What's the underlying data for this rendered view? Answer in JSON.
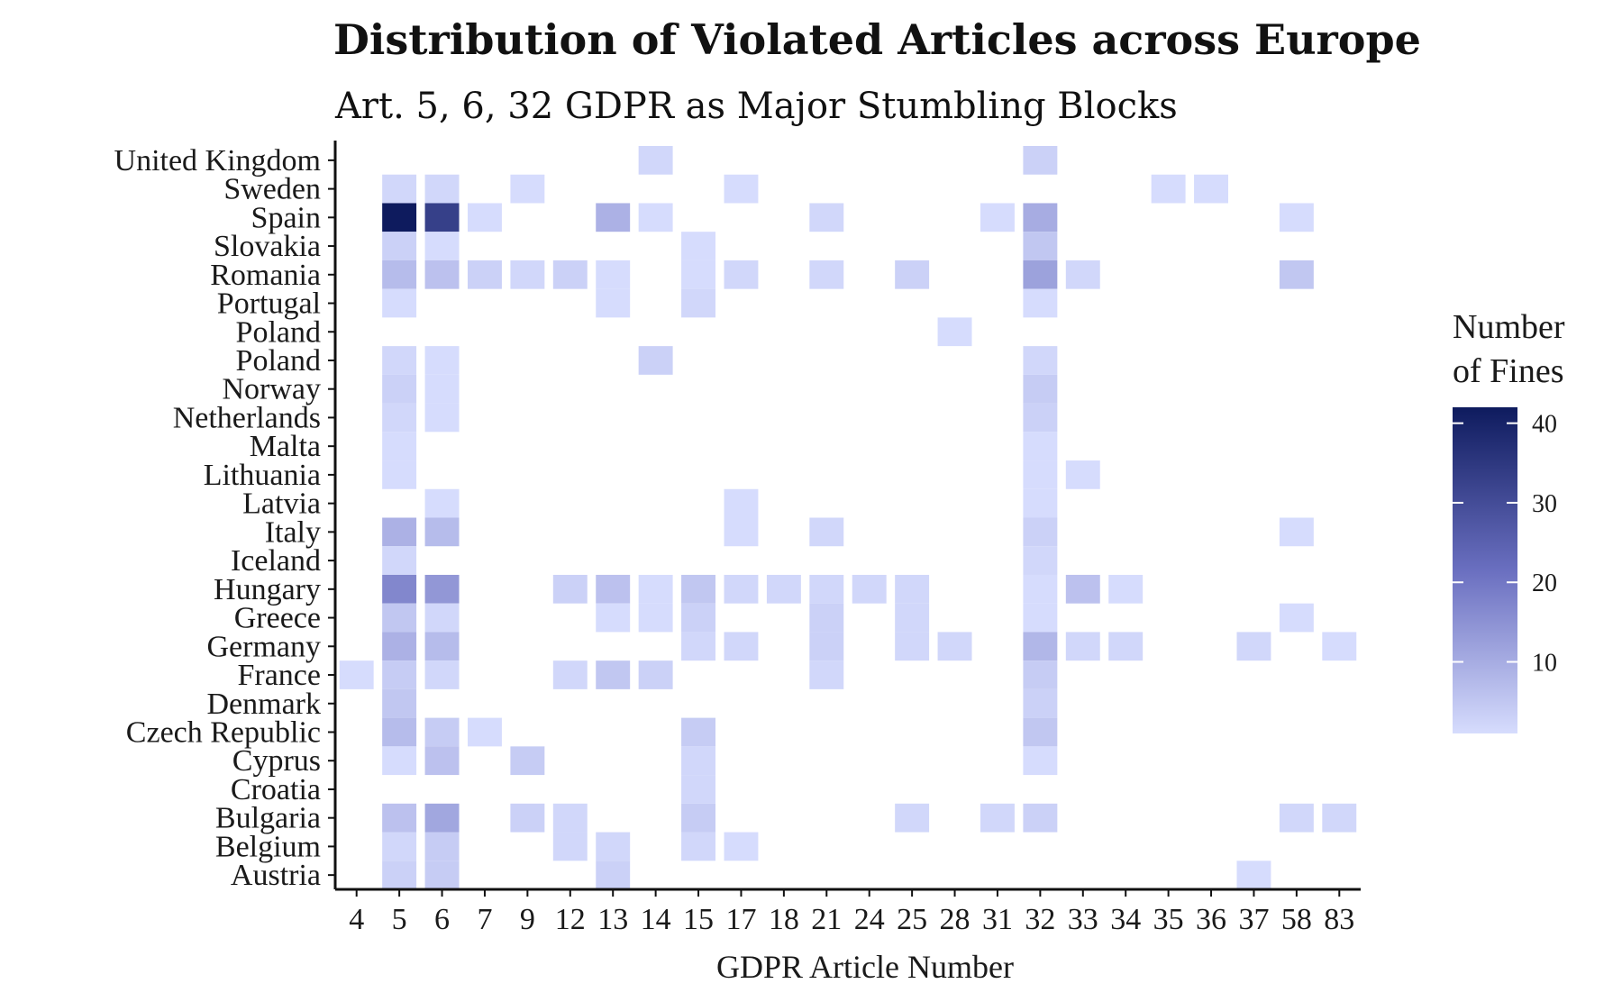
{
  "chart_data": {
    "type": "heatmap",
    "title": "Distribution of Violated Articles across Europe",
    "subtitle": "Art. 5, 6, 32 GDPR as Major Stumbling Blocks",
    "xlabel": "GDPR Article Number",
    "ylabel": "",
    "x_categories": [
      "4",
      "5",
      "6",
      "7",
      "9",
      "12",
      "13",
      "14",
      "15",
      "17",
      "18",
      "21",
      "24",
      "25",
      "28",
      "31",
      "32",
      "33",
      "34",
      "35",
      "36",
      "37",
      "58",
      "83"
    ],
    "y_categories": [
      "Austria",
      "Belgium",
      "Bulgaria",
      "Croatia",
      "Cyprus",
      "Czech Republic",
      "Denmark",
      "France",
      "Germany",
      "Greece",
      "Hungary",
      "Iceland",
      "Italy",
      "Latvia",
      "Lithuania",
      "Malta",
      "Netherlands",
      "Norway",
      "Poland",
      "Poland ",
      "Portugal",
      "Romania",
      "Slovakia",
      "Spain",
      "Sweden",
      "United Kingdom"
    ],
    "legend": {
      "title_line1": "Number",
      "title_line2": "of Fines",
      "min": 1,
      "max": 42,
      "ticks": [
        "10",
        "20",
        "30",
        "40"
      ],
      "color_low": "#d6dcfd",
      "color_high": "#0e1b5e"
    },
    "cells": [
      {
        "country": "United Kingdom",
        "article": "14",
        "value": 2
      },
      {
        "country": "United Kingdom",
        "article": "32",
        "value": 3
      },
      {
        "country": "Sweden",
        "article": "5",
        "value": 2
      },
      {
        "country": "Sweden",
        "article": "6",
        "value": 2
      },
      {
        "country": "Sweden",
        "article": "9",
        "value": 1
      },
      {
        "country": "Sweden",
        "article": "17",
        "value": 1
      },
      {
        "country": "Sweden",
        "article": "35",
        "value": 1
      },
      {
        "country": "Sweden",
        "article": "36",
        "value": 1
      },
      {
        "country": "Spain",
        "article": "5",
        "value": 42
      },
      {
        "country": "Spain",
        "article": "6",
        "value": 33
      },
      {
        "country": "Spain",
        "article": "7",
        "value": 1
      },
      {
        "country": "Spain",
        "article": "13",
        "value": 9
      },
      {
        "country": "Spain",
        "article": "14",
        "value": 1
      },
      {
        "country": "Spain",
        "article": "21",
        "value": 2
      },
      {
        "country": "Spain",
        "article": "31",
        "value": 1
      },
      {
        "country": "Spain",
        "article": "32",
        "value": 10
      },
      {
        "country": "Spain",
        "article": "58",
        "value": 1
      },
      {
        "country": "Slovakia",
        "article": "5",
        "value": 3
      },
      {
        "country": "Slovakia",
        "article": "6",
        "value": 1
      },
      {
        "country": "Slovakia",
        "article": "15",
        "value": 1
      },
      {
        "country": "Slovakia",
        "article": "32",
        "value": 5
      },
      {
        "country": "Romania",
        "article": "5",
        "value": 7
      },
      {
        "country": "Romania",
        "article": "6",
        "value": 6
      },
      {
        "country": "Romania",
        "article": "7",
        "value": 3
      },
      {
        "country": "Romania",
        "article": "9",
        "value": 2
      },
      {
        "country": "Romania",
        "article": "12",
        "value": 3
      },
      {
        "country": "Romania",
        "article": "13",
        "value": 1
      },
      {
        "country": "Romania",
        "article": "15",
        "value": 1
      },
      {
        "country": "Romania",
        "article": "17",
        "value": 2
      },
      {
        "country": "Romania",
        "article": "21",
        "value": 2
      },
      {
        "country": "Romania",
        "article": "25",
        "value": 3
      },
      {
        "country": "Romania",
        "article": "32",
        "value": 12
      },
      {
        "country": "Romania",
        "article": "33",
        "value": 2
      },
      {
        "country": "Romania",
        "article": "58",
        "value": 5
      },
      {
        "country": "Portugal",
        "article": "5",
        "value": 1
      },
      {
        "country": "Portugal",
        "article": "13",
        "value": 1
      },
      {
        "country": "Portugal",
        "article": "15",
        "value": 2
      },
      {
        "country": "Portugal",
        "article": "32",
        "value": 1
      },
      {
        "country": "Poland ",
        "article": "28",
        "value": 1
      },
      {
        "country": "Poland",
        "article": "5",
        "value": 2
      },
      {
        "country": "Poland",
        "article": "6",
        "value": 1
      },
      {
        "country": "Poland",
        "article": "14",
        "value": 3
      },
      {
        "country": "Poland",
        "article": "32",
        "value": 2
      },
      {
        "country": "Norway",
        "article": "5",
        "value": 3
      },
      {
        "country": "Norway",
        "article": "6",
        "value": 1
      },
      {
        "country": "Norway",
        "article": "32",
        "value": 4
      },
      {
        "country": "Netherlands",
        "article": "5",
        "value": 2
      },
      {
        "country": "Netherlands",
        "article": "6",
        "value": 1
      },
      {
        "country": "Netherlands",
        "article": "32",
        "value": 3
      },
      {
        "country": "Malta",
        "article": "5",
        "value": 1
      },
      {
        "country": "Malta",
        "article": "32",
        "value": 1
      },
      {
        "country": "Lithuania",
        "article": "5",
        "value": 1
      },
      {
        "country": "Lithuania",
        "article": "32",
        "value": 1
      },
      {
        "country": "Lithuania",
        "article": "33",
        "value": 1
      },
      {
        "country": "Latvia",
        "article": "6",
        "value": 1
      },
      {
        "country": "Latvia",
        "article": "17",
        "value": 1
      },
      {
        "country": "Latvia",
        "article": "32",
        "value": 1
      },
      {
        "country": "Italy",
        "article": "5",
        "value": 9
      },
      {
        "country": "Italy",
        "article": "6",
        "value": 7
      },
      {
        "country": "Italy",
        "article": "17",
        "value": 1
      },
      {
        "country": "Italy",
        "article": "21",
        "value": 2
      },
      {
        "country": "Italy",
        "article": "32",
        "value": 3
      },
      {
        "country": "Italy",
        "article": "58",
        "value": 1
      },
      {
        "country": "Iceland",
        "article": "5",
        "value": 2
      },
      {
        "country": "Iceland",
        "article": "32",
        "value": 2
      },
      {
        "country": "Hungary",
        "article": "5",
        "value": 17
      },
      {
        "country": "Hungary",
        "article": "6",
        "value": 14
      },
      {
        "country": "Hungary",
        "article": "12",
        "value": 3
      },
      {
        "country": "Hungary",
        "article": "13",
        "value": 6
      },
      {
        "country": "Hungary",
        "article": "14",
        "value": 1
      },
      {
        "country": "Hungary",
        "article": "15",
        "value": 5
      },
      {
        "country": "Hungary",
        "article": "17",
        "value": 2
      },
      {
        "country": "Hungary",
        "article": "18",
        "value": 2
      },
      {
        "country": "Hungary",
        "article": "21",
        "value": 2
      },
      {
        "country": "Hungary",
        "article": "24",
        "value": 2
      },
      {
        "country": "Hungary",
        "article": "25",
        "value": 2
      },
      {
        "country": "Hungary",
        "article": "32",
        "value": 1
      },
      {
        "country": "Hungary",
        "article": "33",
        "value": 6
      },
      {
        "country": "Hungary",
        "article": "34",
        "value": 1
      },
      {
        "country": "Greece",
        "article": "5",
        "value": 5
      },
      {
        "country": "Greece",
        "article": "6",
        "value": 2
      },
      {
        "country": "Greece",
        "article": "13",
        "value": 1
      },
      {
        "country": "Greece",
        "article": "14",
        "value": 1
      },
      {
        "country": "Greece",
        "article": "15",
        "value": 3
      },
      {
        "country": "Greece",
        "article": "21",
        "value": 3
      },
      {
        "country": "Greece",
        "article": "25",
        "value": 2
      },
      {
        "country": "Greece",
        "article": "32",
        "value": 1
      },
      {
        "country": "Greece",
        "article": "58",
        "value": 1
      },
      {
        "country": "Germany",
        "article": "5",
        "value": 9
      },
      {
        "country": "Germany",
        "article": "6",
        "value": 7
      },
      {
        "country": "Germany",
        "article": "15",
        "value": 2
      },
      {
        "country": "Germany",
        "article": "17",
        "value": 2
      },
      {
        "country": "Germany",
        "article": "21",
        "value": 3
      },
      {
        "country": "Germany",
        "article": "25",
        "value": 2
      },
      {
        "country": "Germany",
        "article": "28",
        "value": 2
      },
      {
        "country": "Germany",
        "article": "32",
        "value": 8
      },
      {
        "country": "Germany",
        "article": "33",
        "value": 2
      },
      {
        "country": "Germany",
        "article": "34",
        "value": 2
      },
      {
        "country": "Germany",
        "article": "37",
        "value": 2
      },
      {
        "country": "Germany",
        "article": "83",
        "value": 1
      },
      {
        "country": "France",
        "article": "4",
        "value": 1
      },
      {
        "country": "France",
        "article": "5",
        "value": 4
      },
      {
        "country": "France",
        "article": "6",
        "value": 2
      },
      {
        "country": "France",
        "article": "12",
        "value": 2
      },
      {
        "country": "France",
        "article": "13",
        "value": 5
      },
      {
        "country": "France",
        "article": "14",
        "value": 3
      },
      {
        "country": "France",
        "article": "21",
        "value": 2
      },
      {
        "country": "France",
        "article": "32",
        "value": 4
      },
      {
        "country": "Denmark",
        "article": "5",
        "value": 5
      },
      {
        "country": "Denmark",
        "article": "32",
        "value": 3
      },
      {
        "country": "Czech Republic",
        "article": "5",
        "value": 7
      },
      {
        "country": "Czech Republic",
        "article": "6",
        "value": 4
      },
      {
        "country": "Czech Republic",
        "article": "7",
        "value": 1
      },
      {
        "country": "Czech Republic",
        "article": "15",
        "value": 4
      },
      {
        "country": "Czech Republic",
        "article": "32",
        "value": 5
      },
      {
        "country": "Cyprus",
        "article": "5",
        "value": 1
      },
      {
        "country": "Cyprus",
        "article": "6",
        "value": 6
      },
      {
        "country": "Cyprus",
        "article": "9",
        "value": 4
      },
      {
        "country": "Cyprus",
        "article": "15",
        "value": 2
      },
      {
        "country": "Cyprus",
        "article": "32",
        "value": 1
      },
      {
        "country": "Croatia",
        "article": "15",
        "value": 2
      },
      {
        "country": "Bulgaria",
        "article": "5",
        "value": 6
      },
      {
        "country": "Bulgaria",
        "article": "6",
        "value": 11
      },
      {
        "country": "Bulgaria",
        "article": "9",
        "value": 3
      },
      {
        "country": "Bulgaria",
        "article": "12",
        "value": 2
      },
      {
        "country": "Bulgaria",
        "article": "15",
        "value": 4
      },
      {
        "country": "Bulgaria",
        "article": "25",
        "value": 2
      },
      {
        "country": "Bulgaria",
        "article": "31",
        "value": 2
      },
      {
        "country": "Bulgaria",
        "article": "32",
        "value": 3
      },
      {
        "country": "Bulgaria",
        "article": "58",
        "value": 2
      },
      {
        "country": "Bulgaria",
        "article": "83",
        "value": 2
      },
      {
        "country": "Belgium",
        "article": "5",
        "value": 2
      },
      {
        "country": "Belgium",
        "article": "6",
        "value": 4
      },
      {
        "country": "Belgium",
        "article": "12",
        "value": 2
      },
      {
        "country": "Belgium",
        "article": "13",
        "value": 2
      },
      {
        "country": "Belgium",
        "article": "15",
        "value": 2
      },
      {
        "country": "Belgium",
        "article": "17",
        "value": 1
      },
      {
        "country": "Austria",
        "article": "5",
        "value": 3
      },
      {
        "country": "Austria",
        "article": "6",
        "value": 4
      },
      {
        "country": "Austria",
        "article": "13",
        "value": 3
      },
      {
        "country": "Austria",
        "article": "37",
        "value": 1
      }
    ]
  }
}
